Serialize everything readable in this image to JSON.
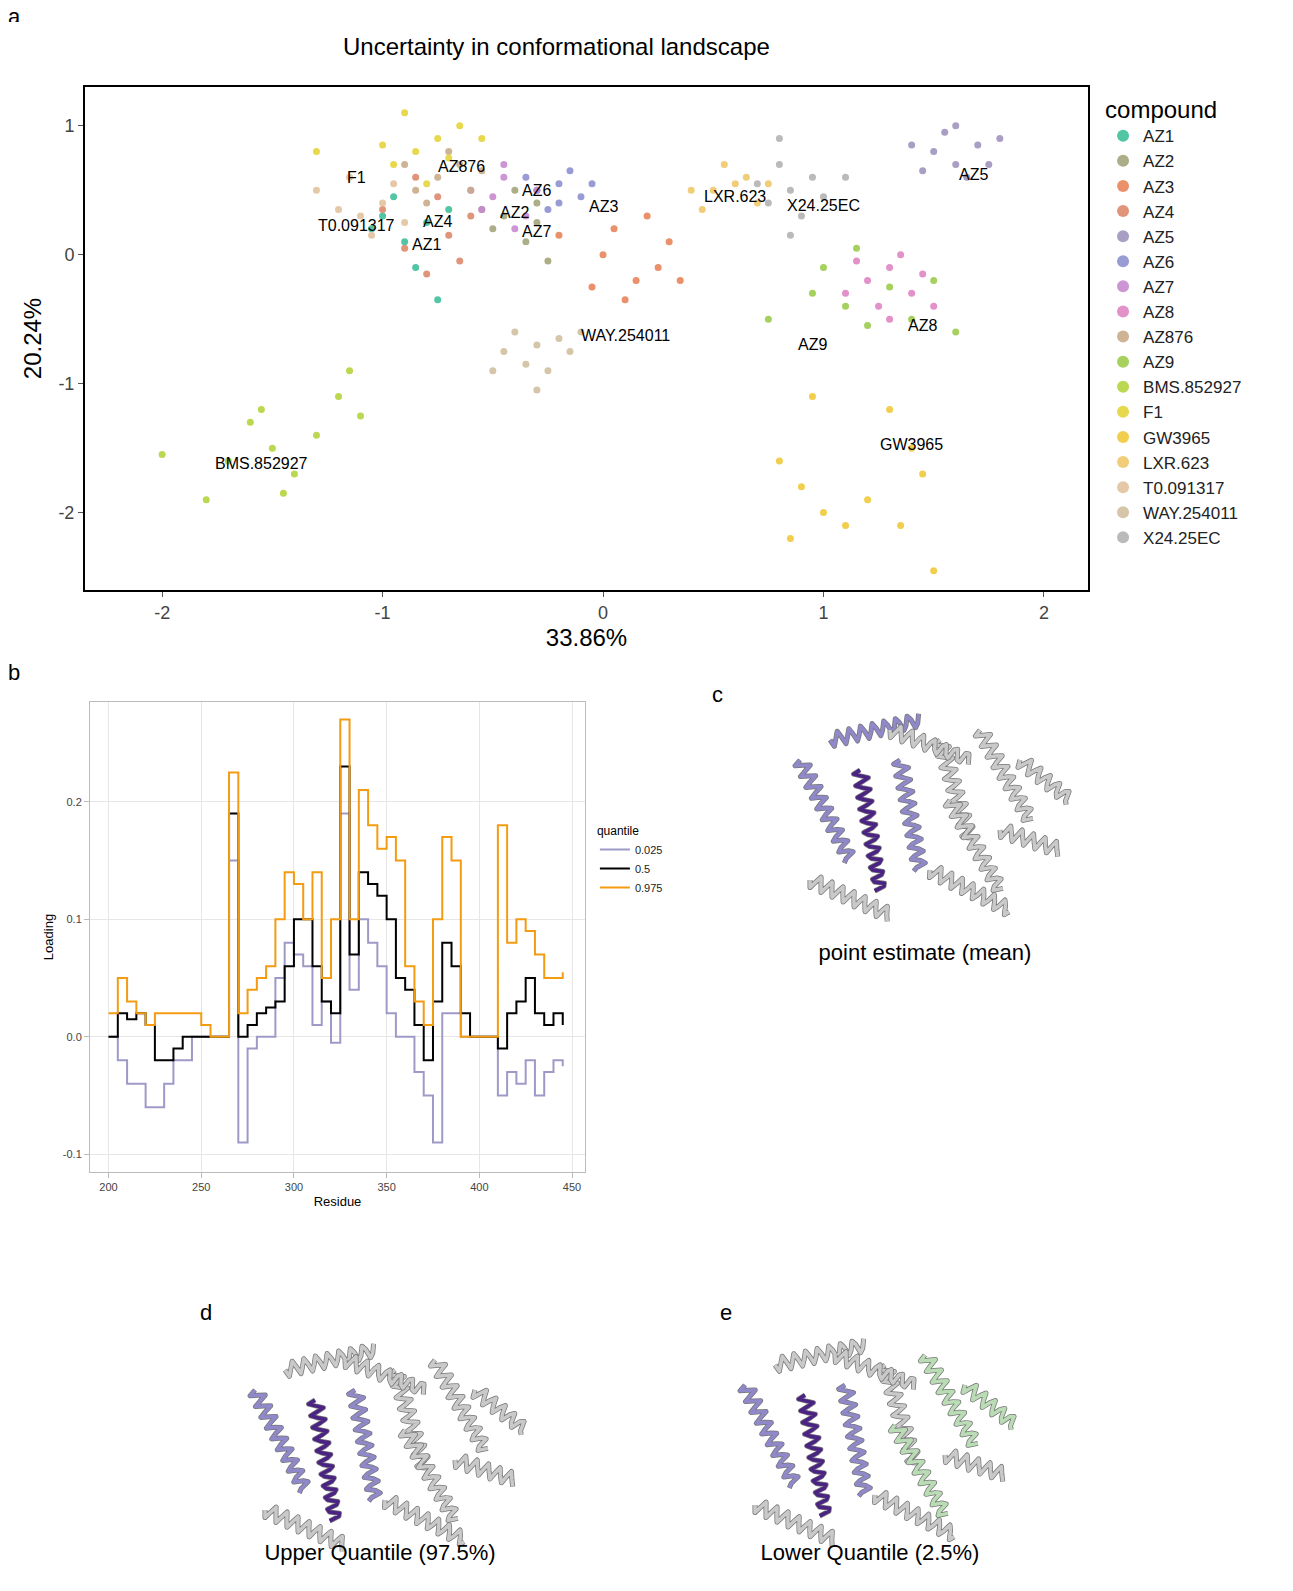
{
  "chart_data": [
    {
      "panel": "a",
      "type": "scatter",
      "title": "Uncertainty in conformational landscape",
      "x_label": "33.86%",
      "y_label": "20.24%",
      "xlim": [
        -2.35,
        2.2
      ],
      "ylim": [
        -2.6,
        1.3
      ],
      "xticks": [
        -2,
        -1,
        0,
        1,
        2
      ],
      "yticks": [
        -2,
        -1,
        0,
        1
      ],
      "grid": false,
      "legend": "right",
      "legend_title": "compound",
      "series": [
        {
          "name": "AZ1",
          "color": "#3fbf9b",
          "x": [
            -1.0,
            -0.9,
            -0.8,
            -0.85,
            -0.7,
            -1.05,
            -0.75,
            -0.95
          ],
          "y": [
            0.3,
            0.1,
            0.25,
            -0.1,
            0.35,
            0.2,
            -0.35,
            0.45
          ]
        },
        {
          "name": "AZ2",
          "color": "#a3a57a",
          "x": [
            -0.45,
            -0.35,
            -0.3,
            -0.5,
            -0.25,
            -0.4,
            -0.55,
            -0.3
          ],
          "y": [
            0.3,
            0.1,
            0.4,
            0.2,
            -0.05,
            0.5,
            0.35,
            0.25
          ]
        },
        {
          "name": "AZ3",
          "color": "#e8845a",
          "x": [
            0.0,
            0.15,
            0.25,
            0.05,
            0.3,
            -0.05,
            0.2,
            0.1,
            0.35,
            -0.2
          ],
          "y": [
            0.0,
            -0.2,
            -0.1,
            0.2,
            0.1,
            -0.25,
            0.3,
            -0.35,
            -0.2,
            0.15
          ]
        },
        {
          "name": "AZ4",
          "color": "#dd8a6b",
          "x": [
            -0.9,
            -0.7,
            -0.8,
            -0.6,
            -1.0,
            -0.75,
            -0.65,
            -0.85
          ],
          "y": [
            0.05,
            0.15,
            -0.15,
            0.3,
            0.35,
            0.45,
            -0.05,
            0.6
          ]
        },
        {
          "name": "AZ5",
          "color": "#a093bd",
          "x": [
            1.5,
            1.6,
            1.7,
            1.55,
            1.65,
            1.45,
            1.75,
            1.6,
            1.4,
            1.8
          ],
          "y": [
            0.8,
            0.7,
            0.85,
            0.95,
            0.6,
            0.65,
            0.7,
            1.0,
            0.85,
            0.9
          ]
        },
        {
          "name": "AZ6",
          "color": "#8e91cf",
          "x": [
            -0.3,
            -0.2,
            -0.1,
            -0.25,
            -0.15,
            -0.35,
            -0.05,
            -0.2
          ],
          "y": [
            0.5,
            0.55,
            0.45,
            0.35,
            0.65,
            0.6,
            0.55,
            0.4
          ]
        },
        {
          "name": "AZ7",
          "color": "#c889cf",
          "x": [
            -0.5,
            -0.45,
            -0.35,
            -0.6,
            -0.4,
            -0.3,
            -0.55,
            -0.45
          ],
          "y": [
            0.45,
            0.6,
            0.3,
            0.5,
            0.2,
            0.5,
            0.35,
            0.7
          ]
        },
        {
          "name": "AZ8",
          "color": "#e085c3",
          "x": [
            1.2,
            1.3,
            1.4,
            1.25,
            1.35,
            1.15,
            1.45,
            1.3,
            1.1,
            1.5
          ],
          "y": [
            -0.2,
            -0.1,
            -0.3,
            -0.4,
            0.0,
            -0.05,
            -0.15,
            -0.5,
            -0.3,
            -0.4
          ]
        },
        {
          "name": "AZ876",
          "color": "#c9ab8a",
          "x": [
            -0.75,
            -0.65,
            -0.85,
            -0.6,
            -0.7,
            -0.8,
            -0.55,
            -0.9
          ],
          "y": [
            0.6,
            0.7,
            0.5,
            0.5,
            0.8,
            0.4,
            0.65,
            0.7
          ]
        },
        {
          "name": "AZ9",
          "color": "#9ccc4e",
          "x": [
            1.0,
            1.1,
            1.3,
            1.2,
            1.4,
            0.95,
            1.5,
            0.75,
            1.6,
            1.15
          ],
          "y": [
            -0.1,
            -0.4,
            -0.25,
            -0.55,
            -0.5,
            -0.3,
            -0.2,
            -0.5,
            -0.6,
            0.05
          ]
        },
        {
          "name": "BMS.852927",
          "color": "#b4d43e",
          "x": [
            -1.5,
            -1.6,
            -1.4,
            -1.7,
            -1.3,
            -1.2,
            -1.15,
            -1.8,
            -2.0,
            -1.45,
            -1.1,
            -1.55
          ],
          "y": [
            -1.5,
            -1.3,
            -1.7,
            -1.6,
            -1.4,
            -1.1,
            -0.9,
            -1.9,
            -1.55,
            -1.85,
            -1.25,
            -1.2
          ]
        },
        {
          "name": "F1",
          "color": "#e6d43a",
          "x": [
            -0.85,
            -0.75,
            -0.95,
            -0.7,
            -0.9,
            -0.65,
            -1.0,
            -0.8,
            -1.3,
            -0.55
          ],
          "y": [
            0.8,
            0.9,
            0.7,
            0.75,
            1.1,
            1.0,
            0.85,
            0.55,
            0.8,
            0.9
          ]
        },
        {
          "name": "GW3965",
          "color": "#f0c93a",
          "x": [
            1.0,
            0.9,
            1.1,
            0.85,
            1.2,
            0.8,
            1.3,
            1.4,
            1.45,
            1.35,
            1.5,
            0.95
          ],
          "y": [
            -2.0,
            -1.8,
            -2.1,
            -2.2,
            -1.9,
            -1.6,
            -1.2,
            -1.5,
            -1.7,
            -2.1,
            -2.45,
            -1.1
          ]
        },
        {
          "name": "LXR.623",
          "color": "#f0c86a",
          "x": [
            0.5,
            0.6,
            0.7,
            0.55,
            0.45,
            0.65,
            0.75,
            0.4
          ],
          "y": [
            0.5,
            0.55,
            0.4,
            0.7,
            0.35,
            0.6,
            0.55,
            0.5
          ]
        },
        {
          "name": "T0.091317",
          "color": "#e2c29e",
          "x": [
            -1.0,
            -1.1,
            -0.95,
            -1.2,
            -1.05,
            -0.9,
            -1.3,
            -1.15
          ],
          "y": [
            0.4,
            0.3,
            0.55,
            0.35,
            0.15,
            0.25,
            0.5,
            0.6
          ]
        },
        {
          "name": "WAY.254011",
          "color": "#d0bfa0",
          "x": [
            -0.3,
            -0.2,
            -0.35,
            -0.4,
            -0.25,
            -0.15,
            -0.45,
            -0.3,
            -0.1,
            -0.5
          ],
          "y": [
            -0.7,
            -0.65,
            -0.85,
            -0.6,
            -0.9,
            -0.75,
            -0.75,
            -1.05,
            -0.6,
            -0.9
          ]
        },
        {
          "name": "X24.25EC",
          "color": "#b3b3b3",
          "x": [
            0.85,
            0.75,
            0.95,
            0.8,
            0.9,
            1.0,
            0.7,
            0.85,
            1.1,
            0.8
          ],
          "y": [
            0.5,
            0.4,
            0.6,
            0.7,
            0.3,
            0.45,
            0.55,
            0.15,
            0.6,
            0.9
          ]
        }
      ],
      "annotations": [
        {
          "text": "F1",
          "x": -1.12,
          "y": 0.6
        },
        {
          "text": "AZ876",
          "x": -0.64,
          "y": 0.68
        },
        {
          "text": "T0.091317",
          "x": -1.12,
          "y": 0.23
        },
        {
          "text": "AZ4",
          "x": -0.75,
          "y": 0.26
        },
        {
          "text": "AZ1",
          "x": -0.8,
          "y": 0.08
        },
        {
          "text": "AZ6",
          "x": -0.3,
          "y": 0.5
        },
        {
          "text": "AZ2",
          "x": -0.4,
          "y": 0.33
        },
        {
          "text": "AZ7",
          "x": -0.3,
          "y": 0.18
        },
        {
          "text": "AZ3",
          "x": 0.0,
          "y": 0.37
        },
        {
          "text": "LXR.623",
          "x": 0.6,
          "y": 0.45
        },
        {
          "text": "X24.25EC",
          "x": 1.0,
          "y": 0.38
        },
        {
          "text": "AZ5",
          "x": 1.68,
          "y": 0.62
        },
        {
          "text": "AZ8",
          "x": 1.45,
          "y": -0.55
        },
        {
          "text": "AZ9",
          "x": 0.95,
          "y": -0.7
        },
        {
          "text": "WAY.254011",
          "x": 0.1,
          "y": -0.63
        },
        {
          "text": "BMS.852927",
          "x": -1.55,
          "y": -1.62
        },
        {
          "text": "GW3965",
          "x": 1.4,
          "y": -1.47
        }
      ]
    },
    {
      "panel": "b",
      "type": "line",
      "x_label": "Residue",
      "y_label": "Loading",
      "xlim": [
        190,
        457
      ],
      "ylim": [
        -0.115,
        0.285
      ],
      "xticks": [
        200,
        250,
        300,
        350,
        400,
        450
      ],
      "yticks": [
        -0.1,
        {
          "value": 0,
          "label": "0.0"
        },
        0.1,
        0.2
      ],
      "grid": true,
      "legend": "right",
      "legend_title": "quantile",
      "x": [
        200,
        205,
        210,
        215,
        220,
        225,
        230,
        235,
        240,
        245,
        250,
        255,
        260,
        265,
        270,
        275,
        280,
        285,
        290,
        295,
        300,
        305,
        310,
        315,
        320,
        325,
        330,
        335,
        340,
        345,
        350,
        355,
        360,
        365,
        370,
        375,
        380,
        385,
        390,
        395,
        400,
        405,
        410,
        415,
        420,
        425,
        430,
        435,
        440,
        445
      ],
      "series": [
        {
          "name": "0.025",
          "color": "#9e9ac8",
          "values": [
            0,
            -0.02,
            -0.04,
            -0.04,
            -0.06,
            -0.06,
            -0.04,
            -0.02,
            -0.02,
            0,
            0,
            0,
            0,
            0.15,
            -0.09,
            -0.01,
            0,
            0,
            0.05,
            0.08,
            0.07,
            0.06,
            0.01,
            0.03,
            -0.005,
            0.19,
            0.04,
            0.1,
            0.08,
            0.06,
            0.02,
            0,
            0,
            -0.03,
            -0.05,
            -0.09,
            0.02,
            0.02,
            0,
            0,
            0,
            0,
            -0.05,
            -0.03,
            -0.04,
            -0.02,
            -0.05,
            -0.03,
            -0.02,
            -0.025
          ]
        },
        {
          "name": "0.5",
          "color": "#000000",
          "values": [
            0,
            0.02,
            0.015,
            0.02,
            0.01,
            -0.02,
            -0.02,
            -0.01,
            0,
            0,
            0,
            0,
            0,
            0.19,
            0,
            0.01,
            0.02,
            0.025,
            0.03,
            0.06,
            0.1,
            0.1,
            0.06,
            0.03,
            0.02,
            0.23,
            0.07,
            0.14,
            0.13,
            0.12,
            0.1,
            0.05,
            0.04,
            0.01,
            -0.02,
            0.03,
            0.08,
            0.06,
            0.02,
            0,
            0,
            0,
            -0.01,
            0.02,
            0.03,
            0.05,
            0.02,
            0.01,
            0.02,
            0.01
          ]
        },
        {
          "name": "0.975",
          "color": "#f39c12",
          "values": [
            0.02,
            0.05,
            0.03,
            0.02,
            0.01,
            0.02,
            0.02,
            0.02,
            0.02,
            0.02,
            0.01,
            0,
            0,
            0.225,
            0.02,
            0.04,
            0.05,
            0.06,
            0.1,
            0.14,
            0.13,
            0.1,
            0.14,
            0.05,
            0.1,
            0.27,
            0.1,
            0.21,
            0.18,
            0.16,
            0.17,
            0.15,
            0.06,
            0.03,
            0.01,
            0.1,
            0.17,
            0.15,
            0,
            0,
            0,
            0,
            0.18,
            0.08,
            0.1,
            0.09,
            0.07,
            0.05,
            0.05,
            0.055
          ]
        }
      ]
    }
  ],
  "structures": [
    {
      "panel": "c",
      "caption": "point estimate (mean)"
    },
    {
      "panel": "d",
      "caption": "Upper Quantile (97.5%)"
    },
    {
      "panel": "e",
      "caption": "Lower Quantile (2.5%)"
    }
  ]
}
